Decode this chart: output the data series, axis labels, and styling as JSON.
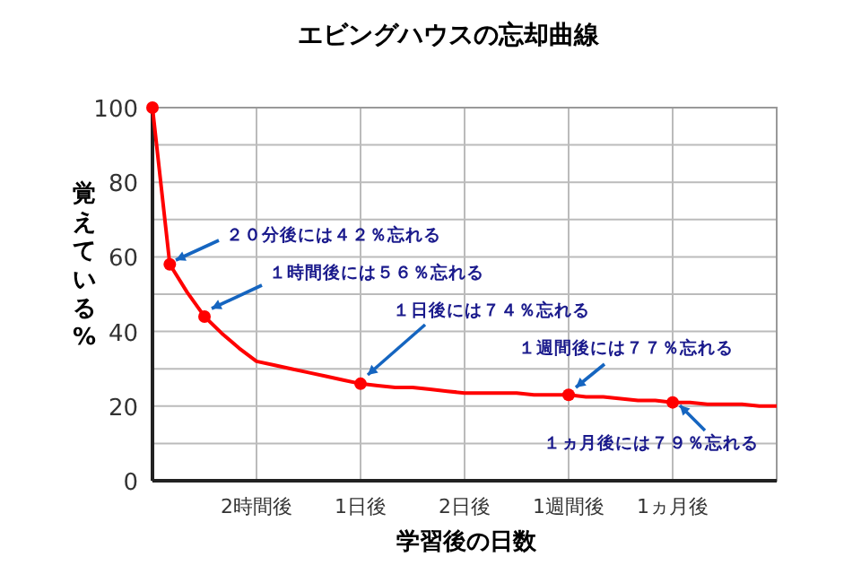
{
  "chart_data": {
    "type": "line",
    "title": "エビングハウスの忘却曲線",
    "xlabel": "学習後の日数",
    "ylabel": "覚えている%",
    "categories": [
      null,
      null,
      null,
      null,
      null,
      null,
      "2時間後",
      null,
      null,
      null,
      null,
      null,
      "1日後",
      null,
      null,
      null,
      null,
      null,
      "2日後",
      null,
      null,
      null,
      null,
      null,
      "1週間後",
      null,
      null,
      null,
      null,
      null,
      "1ヵ月後",
      null,
      null,
      null,
      null,
      null,
      null
    ],
    "ylim": [
      0,
      100
    ],
    "yticks": [
      0,
      {
        "value": 10,
        "label": null
      },
      20,
      {
        "value": 30,
        "label": null
      },
      40,
      {
        "value": 50,
        "label": null
      },
      60,
      {
        "value": 70,
        "label": null
      },
      80,
      {
        "value": 90,
        "label": null
      },
      100
    ],
    "grid": true,
    "line_style": "solid",
    "series": [
      {
        "color": "#ff0000",
        "marker": "none",
        "values": [
          100,
          58,
          50.5,
          44,
          39.5,
          35.5,
          32,
          31,
          30,
          29,
          28,
          27,
          26,
          25.5,
          25,
          25,
          24.5,
          24,
          23.5,
          23.5,
          23.5,
          23.5,
          23,
          23,
          23,
          22.5,
          22.5,
          22,
          21.5,
          21.5,
          21,
          21,
          20.5,
          20.5,
          20.5,
          20,
          20
        ]
      },
      {
        "type": "scatter",
        "color": "#ff0000",
        "marker": "circle",
        "values": [
          100,
          58,
          null,
          44,
          null,
          null,
          null,
          null,
          null,
          null,
          null,
          null,
          26,
          null,
          null,
          null,
          null,
          null,
          null,
          null,
          null,
          null,
          null,
          null,
          23,
          null,
          null,
          null,
          null,
          null,
          21,
          null,
          null,
          null,
          null,
          null,
          null
        ]
      }
    ],
    "annotations": [
      "２０分後には４２％忘れる",
      "１時間後には５６％忘れる",
      "１日後には７４％忘れる",
      "１週間後には７７％忘れる",
      "１ヵ月後には７９％忘れる"
    ]
  }
}
